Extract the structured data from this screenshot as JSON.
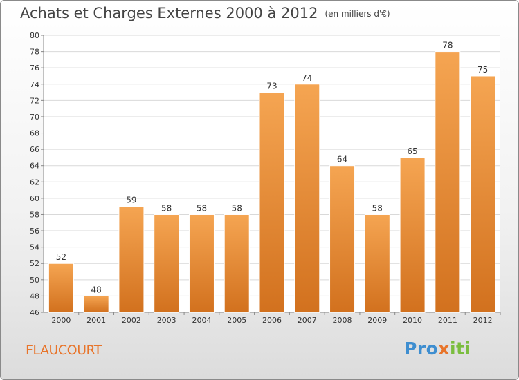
{
  "title": "Achats et Charges Externes 2000 à 2012",
  "unit": "(en milliers d'€)",
  "commune": "FLAUCOURT",
  "logo": {
    "part1": "Pro",
    "part2": "x",
    "part3": "iti"
  },
  "colors": {
    "bar_top": "#f5a552",
    "bar_bottom": "#d2711e",
    "commune": "#e8742a"
  },
  "chart_data": {
    "type": "bar",
    "title": "Achats et Charges Externes 2000 à 2012",
    "subtitle": "(en milliers d'€)",
    "categories": [
      "2000",
      "2001",
      "2002",
      "2003",
      "2004",
      "2005",
      "2006",
      "2007",
      "2008",
      "2009",
      "2010",
      "2011",
      "2012"
    ],
    "values": [
      52,
      48,
      59,
      58,
      58,
      58,
      73,
      74,
      64,
      58,
      65,
      78,
      75
    ],
    "ylim": [
      46,
      80
    ],
    "ytick_step": 2,
    "grid": true,
    "xlabel": "",
    "ylabel": ""
  }
}
